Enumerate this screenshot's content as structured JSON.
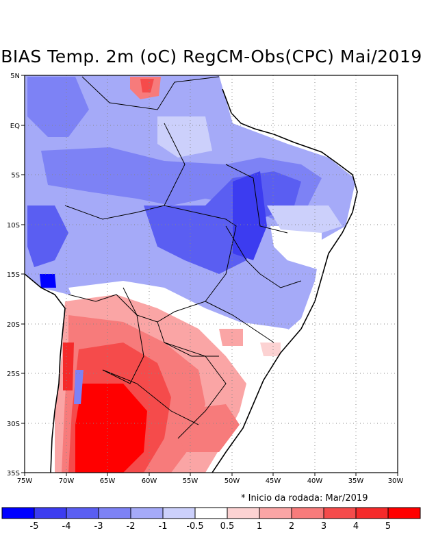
{
  "map": {
    "title": "BIAS Temp. 2m (oC) RegCM-Obs(CPC) Mai/2019",
    "note": "* Inicio da rodada: Mar/2019",
    "lon_labels": [
      "75W",
      "70W",
      "65W",
      "60W",
      "55W",
      "50W",
      "45W",
      "40W",
      "35W",
      "30W"
    ],
    "lat_labels": [
      "5N",
      "EQ",
      "5S",
      "10S",
      "15S",
      "20S",
      "25S",
      "30S",
      "35S"
    ],
    "colorbar": {
      "labels": [
        "-5",
        "-4",
        "-3",
        "-2",
        "-1",
        "-0.5",
        "0.5",
        "1",
        "2",
        "3",
        "4",
        "5"
      ],
      "colors": [
        "#0000ff",
        "#3c3cf0",
        "#5a5ef2",
        "#7d82f5",
        "#a5aaf8",
        "#ccd0fb",
        "#ffffff",
        "#fcd2d2",
        "#faa5a5",
        "#f77b7b",
        "#f54b4b",
        "#f52a2a",
        "#ff0000"
      ]
    }
  }
}
